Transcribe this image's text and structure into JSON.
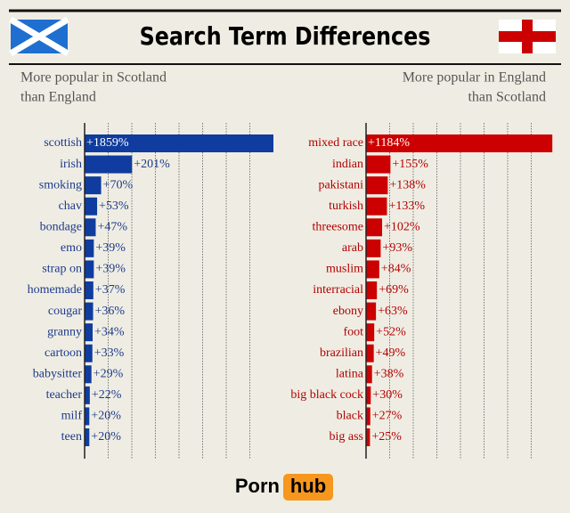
{
  "title": "Search Term Differences",
  "logo": {
    "left": "Porn",
    "right": "hub"
  },
  "chart_data": [
    {
      "type": "hbar",
      "subtitle": [
        "More popular in Scotland",
        "than England"
      ],
      "subtitle_align": "left",
      "color": "#0f3c9e",
      "label_color": "#1c3a8c",
      "grid": true,
      "xlim": [
        0,
        800
      ],
      "xticks": [
        100,
        200,
        300,
        400,
        500,
        600,
        700
      ],
      "categories": [
        "scottish",
        "irish",
        "smoking",
        "chav",
        "bondage",
        "emo",
        "strap on",
        "homemade",
        "cougar",
        "granny",
        "cartoon",
        "babysitter",
        "teacher",
        "milf",
        "teen"
      ],
      "values": [
        1859,
        201,
        70,
        53,
        47,
        39,
        39,
        37,
        36,
        34,
        33,
        29,
        22,
        20,
        20
      ],
      "value_labels": [
        "+1859%",
        "+201%",
        "+70%",
        "+53%",
        "+47%",
        "+39%",
        "+39%",
        "+37%",
        "+36%",
        "+34%",
        "+33%",
        "+29%",
        "+22%",
        "+20%",
        "+20%"
      ]
    },
    {
      "type": "hbar",
      "subtitle": [
        "More popular in England",
        "than Scotland"
      ],
      "subtitle_align": "right",
      "color": "#cc0000",
      "label_color": "#b30000",
      "grid": true,
      "xlim": [
        0,
        1200
      ],
      "xticks": [
        150,
        300,
        450,
        600,
        750,
        900,
        1050
      ],
      "categories": [
        "mixed race",
        "indian",
        "pakistani",
        "turkish",
        "threesome",
        "arab",
        "muslim",
        "interracial",
        "ebony",
        "foot",
        "brazilian",
        "latina",
        "big black cock",
        "black",
        "big ass"
      ],
      "values": [
        1184,
        155,
        138,
        133,
        102,
        93,
        84,
        69,
        63,
        52,
        49,
        38,
        30,
        27,
        25
      ],
      "value_labels": [
        "+1184%",
        "+155%",
        "+138%",
        "+133%",
        "+102%",
        "+93%",
        "+84%",
        "+69%",
        "+63%",
        "+52%",
        "+49%",
        "+38%",
        "+30%",
        "+27%",
        "+25%"
      ]
    }
  ]
}
